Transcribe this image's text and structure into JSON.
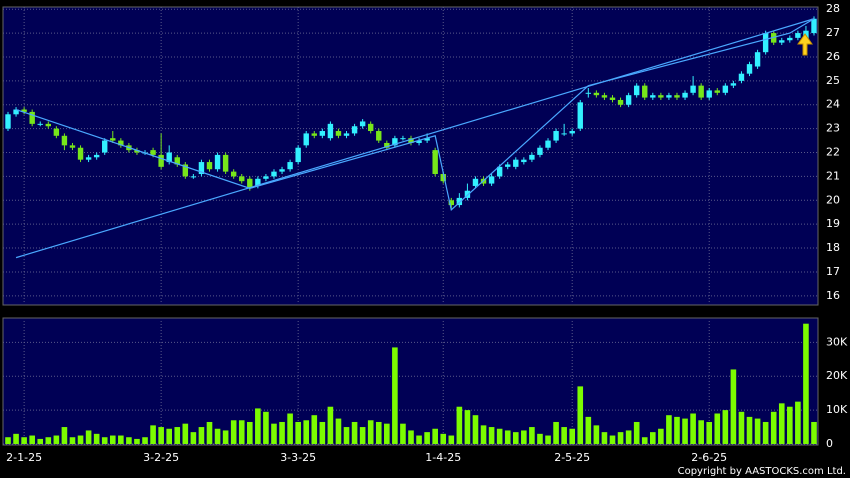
{
  "chart_data": [
    {
      "type": "candlestick",
      "open": [
        23.0,
        23.6,
        23.8,
        23.7,
        23.2,
        23.2,
        23.0,
        22.7,
        22.3,
        22.2,
        21.7,
        21.8,
        22.0,
        22.6,
        22.5,
        22.3,
        22.1,
        22.0,
        22.1,
        21.9,
        21.6,
        21.8,
        21.5,
        21.0,
        21.1,
        21.6,
        21.3,
        21.9,
        21.2,
        21.0,
        20.9,
        20.6,
        20.9,
        21.0,
        21.2,
        21.3,
        21.6,
        22.3,
        22.8,
        22.7,
        22.6,
        22.9,
        22.7,
        22.8,
        23.1,
        23.2,
        22.9,
        22.4,
        22.3,
        22.6,
        22.6,
        22.4,
        22.5,
        22.1,
        21.1,
        20.0,
        19.8,
        20.1,
        20.6,
        20.9,
        20.7,
        21.0,
        21.4,
        21.4,
        21.6,
        21.7,
        21.9,
        22.2,
        22.5,
        22.8,
        22.8,
        23.0,
        24.5,
        24.5,
        24.4,
        24.3,
        24.2,
        24.0,
        24.4,
        24.8,
        24.3,
        24.4,
        24.3,
        24.4,
        24.3,
        24.5,
        24.8,
        24.3,
        24.6,
        24.5,
        24.8,
        25.0,
        25.3,
        25.6,
        26.2,
        27.0,
        26.6,
        26.7,
        26.8,
        26.7,
        27.0
      ],
      "high": [
        23.7,
        23.9,
        23.9,
        23.8,
        23.3,
        23.3,
        23.1,
        22.8,
        22.4,
        22.3,
        21.9,
        22.0,
        22.6,
        22.9,
        22.6,
        22.4,
        22.2,
        22.1,
        22.2,
        22.8,
        22.3,
        21.9,
        21.6,
        21.1,
        21.7,
        21.7,
        22.0,
        22.0,
        21.3,
        21.1,
        21.0,
        21.0,
        21.1,
        21.3,
        21.4,
        21.7,
        22.3,
        22.9,
        22.9,
        23.0,
        23.3,
        23.0,
        22.9,
        23.2,
        23.4,
        23.3,
        23.0,
        22.5,
        22.7,
        22.7,
        22.7,
        22.6,
        22.8,
        22.2,
        21.2,
        20.1,
        20.3,
        20.7,
        21.0,
        21.0,
        21.1,
        21.5,
        21.6,
        21.8,
        21.8,
        22.0,
        22.3,
        22.6,
        23.0,
        23.2,
        23.0,
        24.2,
        24.7,
        24.6,
        24.5,
        24.4,
        24.3,
        24.5,
        24.9,
        24.9,
        24.5,
        24.5,
        24.5,
        24.5,
        24.6,
        25.2,
        24.9,
        24.7,
        24.7,
        24.9,
        25.0,
        25.4,
        25.8,
        26.3,
        27.1,
        27.1,
        26.8,
        26.9,
        27.1,
        27.3,
        27.7
      ],
      "low": [
        22.9,
        23.5,
        23.6,
        23.1,
        23.1,
        23.0,
        22.6,
        22.1,
        22.1,
        21.6,
        21.6,
        21.7,
        21.9,
        22.4,
        22.2,
        22.0,
        21.9,
        21.9,
        21.8,
        21.3,
        21.5,
        21.4,
        20.9,
        20.9,
        21.0,
        21.2,
        21.2,
        21.1,
        20.9,
        20.7,
        20.4,
        20.5,
        20.8,
        20.9,
        21.1,
        21.2,
        21.5,
        22.2,
        22.6,
        22.6,
        22.5,
        22.6,
        22.6,
        22.7,
        23.0,
        22.8,
        22.4,
        22.1,
        22.2,
        22.5,
        22.3,
        22.3,
        22.4,
        21.0,
        20.7,
        19.6,
        19.7,
        20.0,
        20.5,
        20.6,
        20.6,
        20.9,
        21.3,
        21.3,
        21.5,
        21.6,
        21.8,
        22.1,
        22.4,
        22.7,
        22.7,
        22.9,
        24.3,
        24.3,
        24.2,
        24.1,
        23.9,
        23.9,
        24.3,
        24.2,
        24.2,
        24.2,
        24.2,
        24.2,
        24.2,
        24.4,
        24.2,
        24.2,
        24.4,
        24.4,
        24.7,
        24.9,
        25.2,
        25.5,
        26.1,
        26.5,
        26.5,
        26.6,
        26.7,
        26.6,
        26.9
      ],
      "close": [
        23.6,
        23.8,
        23.7,
        23.2,
        23.2,
        23.1,
        22.7,
        22.3,
        22.2,
        21.7,
        21.8,
        21.9,
        22.5,
        22.5,
        22.3,
        22.1,
        22.0,
        22.0,
        21.9,
        21.4,
        22.0,
        21.5,
        21.0,
        21.0,
        21.6,
        21.3,
        21.9,
        21.2,
        21.0,
        20.8,
        20.5,
        20.9,
        21.0,
        21.2,
        21.3,
        21.6,
        22.2,
        22.8,
        22.7,
        22.9,
        23.2,
        22.7,
        22.8,
        23.1,
        23.3,
        22.9,
        22.5,
        22.2,
        22.6,
        22.6,
        22.4,
        22.5,
        22.6,
        21.1,
        20.8,
        19.8,
        20.1,
        20.4,
        20.9,
        20.7,
        21.0,
        21.4,
        21.5,
        21.7,
        21.7,
        21.9,
        22.2,
        22.5,
        22.9,
        22.8,
        22.9,
        24.1,
        24.5,
        24.4,
        24.3,
        24.2,
        24.0,
        24.4,
        24.8,
        24.3,
        24.4,
        24.3,
        24.4,
        24.3,
        24.5,
        24.8,
        24.3,
        24.6,
        24.5,
        24.8,
        24.9,
        25.3,
        25.7,
        26.2,
        27.0,
        26.6,
        26.7,
        26.8,
        27.0,
        27.1,
        27.6
      ],
      "up_color": "#33f0ff",
      "down_color": "#77e61a",
      "trendlines": [
        {
          "x": [
            1,
            100
          ],
          "y": [
            17.6,
            27.6
          ]
        },
        {
          "x": [
            1,
            30,
            53,
            55,
            72,
            97,
            100
          ],
          "y": [
            23.8,
            20.5,
            22.7,
            19.6,
            24.8,
            27.0,
            27.6
          ]
        }
      ],
      "trend_color": "#4aa8ff",
      "ylim": [
        15.7,
        28.05
      ],
      "yticks": [
        16,
        17,
        18,
        19,
        20,
        21,
        22,
        23,
        24,
        25,
        26,
        27,
        28
      ],
      "grid": true
    },
    {
      "type": "bar",
      "categories": [
        null,
        null,
        "2-1-25",
        null,
        null,
        null,
        null,
        null,
        null,
        null,
        null,
        null,
        null,
        null,
        null,
        null,
        null,
        null,
        null,
        "3-2-25",
        null,
        null,
        null,
        null,
        null,
        null,
        null,
        null,
        null,
        null,
        null,
        null,
        null,
        null,
        null,
        null,
        "3-3-25",
        null,
        null,
        null,
        null,
        null,
        null,
        null,
        null,
        null,
        null,
        null,
        null,
        null,
        null,
        null,
        null,
        null,
        "1-4-25",
        null,
        null,
        null,
        null,
        null,
        null,
        null,
        null,
        null,
        null,
        null,
        null,
        null,
        null,
        null,
        "2-5-25",
        null,
        null,
        null,
        null,
        null,
        null,
        null,
        null,
        null,
        null,
        null,
        null,
        null,
        null,
        null,
        null,
        "2-6-25",
        null,
        null,
        null,
        null,
        null,
        null,
        null,
        null,
        null,
        null,
        null,
        null,
        null
      ],
      "values": [
        2000,
        3000,
        2000,
        2500,
        1500,
        2000,
        2500,
        5000,
        2000,
        2500,
        4000,
        3000,
        2000,
        2500,
        2500,
        2000,
        1500,
        2000,
        5500,
        5000,
        4500,
        5000,
        6000,
        3500,
        5000,
        6500,
        4500,
        4000,
        7000,
        7000,
        6500,
        10500,
        9500,
        6000,
        6500,
        9000,
        6500,
        7000,
        8500,
        6500,
        11000,
        7500,
        5000,
        6500,
        5000,
        7000,
        6500,
        6000,
        28500,
        6000,
        4000,
        2500,
        3500,
        4500,
        3000,
        2500,
        11000,
        10000,
        8500,
        5500,
        5000,
        4500,
        4000,
        3500,
        4000,
        5000,
        3000,
        2500,
        6500,
        5000,
        4500,
        17000,
        8000,
        5500,
        3500,
        2500,
        3500,
        4000,
        6500,
        2000,
        3500,
        4500,
        8500,
        8000,
        7500,
        9000,
        7000,
        6500,
        9000,
        10000,
        22000,
        9500,
        8000,
        7500,
        6500,
        9500,
        12000,
        11000,
        12500,
        35500,
        6500
      ],
      "color": "#7cfc00",
      "ylim": [
        0,
        36000
      ],
      "yticks": [
        0,
        {
          "value": 10000,
          "label": "10K"
        },
        {
          "value": 20000,
          "label": "20K"
        },
        {
          "value": 30000,
          "label": "30K"
        }
      ],
      "grid": true
    }
  ],
  "footer": "Copyright by AASTOCKS.com Ltd."
}
